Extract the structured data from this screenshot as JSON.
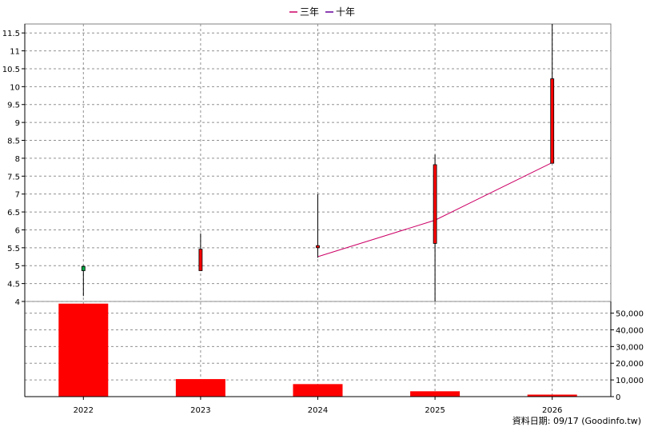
{
  "chart_data": {
    "type": "candlestick",
    "legend": [
      {
        "name": "三年",
        "color": "#cc0066"
      },
      {
        "name": "十年",
        "color": "#660099"
      }
    ],
    "categories": [
      "2022",
      "2023",
      "2024",
      "2025",
      "2026"
    ],
    "price_axis": {
      "ylim": [
        4,
        11.75
      ],
      "ticks": [
        "4",
        "4.5",
        "5",
        "5.5",
        "6",
        "6.5",
        "7",
        "7.5",
        "8",
        "8.5",
        "9",
        "9.5",
        "10",
        "10.5",
        "11",
        "11.5"
      ]
    },
    "volume_axis": {
      "ylim": [
        0,
        57000
      ],
      "ticks": [
        "0",
        "10,000",
        "20,000",
        "30,000",
        "40,000",
        "50,000"
      ]
    },
    "candles": [
      {
        "x": "2022",
        "open": 4.86,
        "close": 4.98,
        "high": 5.0,
        "low": 4.15,
        "color": "#00aa44"
      },
      {
        "x": "2023",
        "open": 4.86,
        "close": 5.46,
        "high": 5.9,
        "low": 4.86,
        "color": "#ff0000"
      },
      {
        "x": "2024",
        "open": 5.5,
        "close": 5.56,
        "high": 7.0,
        "low": 5.22,
        "color": "#ff0000"
      },
      {
        "x": "2025",
        "open": 5.62,
        "close": 7.82,
        "high": 8.1,
        "low": 4.0,
        "color": "#ff0000"
      },
      {
        "x": "2026",
        "open": 7.86,
        "close": 10.22,
        "high": 11.75,
        "low": 7.86,
        "color": "#ff0000"
      }
    ],
    "three_year_line": [
      {
        "x": "2024",
        "y": 5.25
      },
      {
        "x": "2025",
        "y": 6.27
      },
      {
        "x": "2026",
        "y": 7.88
      }
    ],
    "volume": [
      55700,
      10500,
      7500,
      3200,
      1200
    ],
    "grid": true
  },
  "source_note": "資料日期: 09/17  (Goodinfo.tw)"
}
